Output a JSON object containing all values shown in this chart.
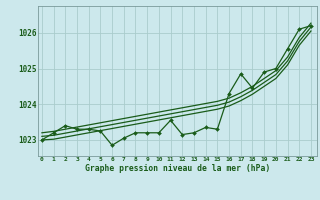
{
  "title": "Graphe pression niveau de la mer (hPa)",
  "bg_color": "#cce8ec",
  "grid_color": "#aacccc",
  "line_color": "#1a5c1a",
  "x_ticks": [
    0,
    1,
    2,
    3,
    4,
    5,
    6,
    7,
    8,
    9,
    10,
    11,
    12,
    13,
    14,
    15,
    16,
    17,
    18,
    19,
    20,
    21,
    22,
    23
  ],
  "y_ticks": [
    1023,
    1024,
    1025,
    1026
  ],
  "ylim": [
    1022.55,
    1026.75
  ],
  "xlim": [
    -0.3,
    23.5
  ],
  "pressure_data": [
    1023.0,
    1023.2,
    1023.4,
    1023.3,
    1023.3,
    1023.25,
    1022.85,
    1023.05,
    1023.2,
    1023.2,
    1023.2,
    1023.55,
    1023.15,
    1023.2,
    1023.35,
    1023.3,
    1024.3,
    1024.85,
    1024.45,
    1024.9,
    1025.0,
    1025.55,
    1026.1,
    1026.2
  ],
  "smooth_line1": [
    1023.0,
    1023.02,
    1023.08,
    1023.14,
    1023.2,
    1023.26,
    1023.32,
    1023.38,
    1023.44,
    1023.5,
    1023.56,
    1023.62,
    1023.68,
    1023.74,
    1023.8,
    1023.86,
    1023.95,
    1024.1,
    1024.28,
    1024.5,
    1024.72,
    1025.1,
    1025.65,
    1026.05
  ],
  "smooth_line2": [
    1023.1,
    1023.13,
    1023.19,
    1023.25,
    1023.31,
    1023.37,
    1023.43,
    1023.49,
    1023.55,
    1023.61,
    1023.67,
    1023.73,
    1023.79,
    1023.85,
    1023.91,
    1023.97,
    1024.06,
    1024.21,
    1024.39,
    1024.61,
    1024.83,
    1025.21,
    1025.76,
    1026.16
  ],
  "smooth_line3": [
    1023.2,
    1023.24,
    1023.3,
    1023.36,
    1023.42,
    1023.48,
    1023.54,
    1023.6,
    1023.66,
    1023.72,
    1023.78,
    1023.84,
    1023.9,
    1023.96,
    1024.02,
    1024.08,
    1024.17,
    1024.32,
    1024.5,
    1024.72,
    1024.94,
    1025.32,
    1025.87,
    1026.27
  ]
}
